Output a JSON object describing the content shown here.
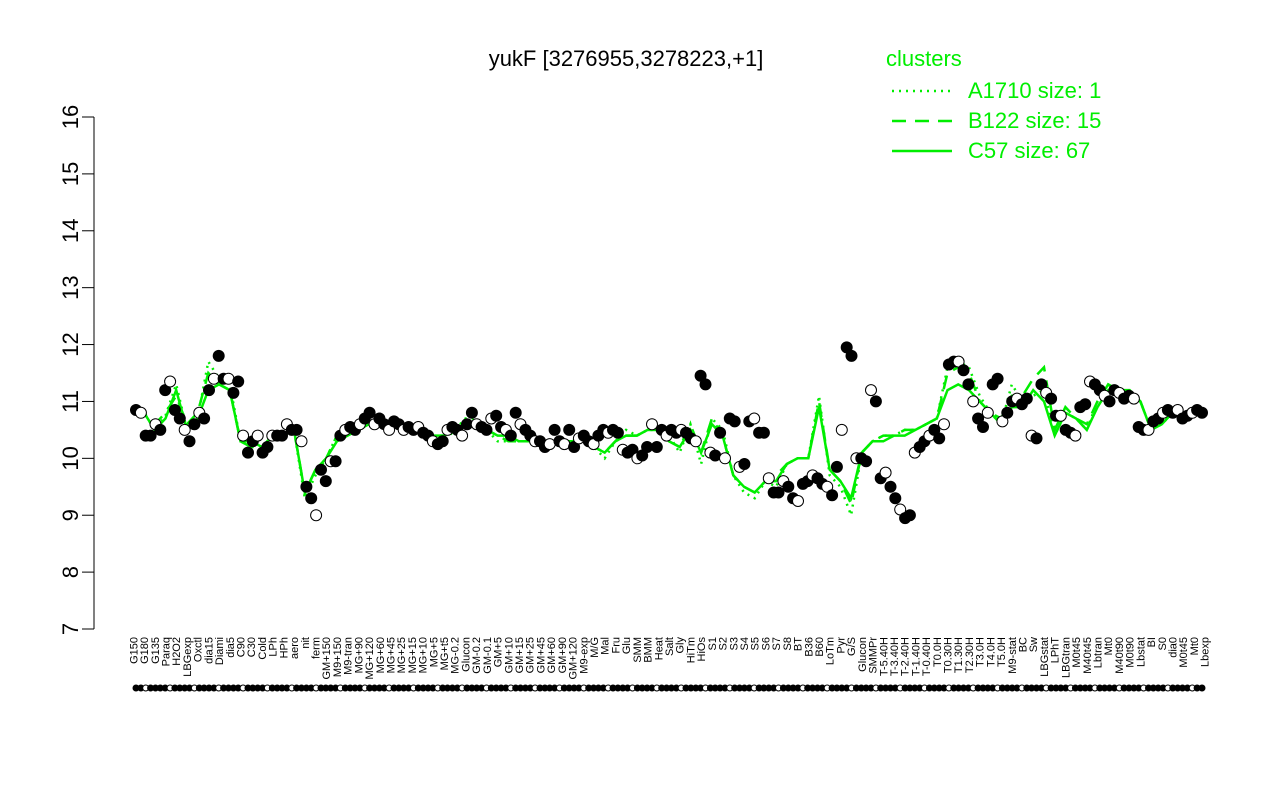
{
  "chart_data": {
    "type": "line",
    "title": "yukF [3276955,3278223,+1]",
    "xlabel": "",
    "ylabel": "",
    "ylim": [
      7,
      16
    ],
    "yticks": [
      7,
      8,
      9,
      10,
      11,
      12,
      13,
      14,
      15,
      16
    ],
    "grid": false,
    "legend": {
      "title": "clusters",
      "placement": "top-right",
      "color": "#00ee00",
      "entries": [
        {
          "label": "A1710 size: 1",
          "style": "dotted"
        },
        {
          "label": "B122 size: 15",
          "style": "dashed"
        },
        {
          "label": "C57 size: 67",
          "style": "solid"
        }
      ]
    },
    "x_tick_labels": [
      "G150",
      "G180",
      "G135",
      "Paraq",
      "H2O2",
      "LBGexp",
      "Oxctl",
      "dia15",
      "Diami",
      "dia5",
      "C90",
      "C30",
      "Cold",
      "LPh",
      "HPh",
      "aero",
      "nit",
      "ferm",
      "GM+150",
      "M9+150",
      "M9-tran",
      "MG+90",
      "MG+120",
      "MG+60",
      "MG+45",
      "MG+25",
      "MG+15",
      "MG+10",
      "MG+5",
      "MG+t5",
      "MG-0.2",
      "Glucon",
      "GM-0.2",
      "GM-0.1",
      "GM+5",
      "GM+10",
      "GM+15",
      "GM+25",
      "GM+45",
      "GM+60",
      "GM+90",
      "GM+120",
      "M9-exp",
      "M/G",
      "Mal",
      "Fru",
      "Glu",
      "SMM",
      "BMM",
      "Heat",
      "Salt",
      "Gly",
      "HiTm",
      "HiOs",
      "S1",
      "S2",
      "S3",
      "S4",
      "S5",
      "S6",
      "S7",
      "S8",
      "BT",
      "B36",
      "B60",
      "LoTm",
      "Pyr",
      "G/S",
      "Glucon",
      "SMMPr",
      "T-5.40H",
      "T-3.40H",
      "T-2.40H",
      "T-1.40H",
      "T-0.40H",
      "T0.0H",
      "T0.30H",
      "T1.30H",
      "T2.30H",
      "T3.0H",
      "T4.0H",
      "T5.0H",
      "M9-stat",
      "BC",
      "Sw",
      "LBGstat",
      "LPhT",
      "LBGtran",
      "M0t45",
      "M40t45",
      "Lbtran",
      "Mt0",
      "M40t90",
      "M0t90",
      "Lbstat",
      "BI",
      "S0",
      "dia0",
      "M0t45",
      "Mt0",
      "Lbexp"
    ],
    "series": [
      {
        "style": "solid",
        "color": "#00ee00",
        "values": [
          10.9,
          10.8,
          10.5,
          10.7,
          11.2,
          10.5,
          10.7,
          11.2,
          11.3,
          11.2,
          10.3,
          10.3,
          10.2,
          10.4,
          10.4,
          10.5,
          9.4,
          9.8,
          10.0,
          10.3,
          10.4,
          10.5,
          10.6,
          10.6,
          10.6,
          10.5,
          10.5,
          10.5,
          10.4,
          10.4,
          10.5,
          10.6,
          10.6,
          10.5,
          10.4,
          10.4,
          10.3,
          10.3,
          10.3,
          10.3,
          10.3,
          10.3,
          10.4,
          10.2,
          10.1,
          10.3,
          10.4,
          10.4,
          10.5,
          10.5,
          10.3,
          10.2,
          10.5,
          10.1,
          10.6,
          10.4,
          9.7,
          9.5,
          9.4,
          9.6,
          9.6,
          9.9,
          10.0,
          10.0,
          10.9,
          9.8,
          9.6,
          9.3,
          10.1,
          10.3,
          10.3,
          10.4,
          10.4,
          10.5,
          10.6,
          10.7,
          11.2,
          11.3,
          11.2,
          11.0,
          10.8,
          10.6,
          10.9,
          10.9,
          11.2,
          11.0,
          10.4,
          10.8,
          10.7,
          10.5,
          10.9,
          11.2,
          11.1,
          11.1,
          11.0,
          10.5,
          10.6,
          10.8,
          10.8,
          10.8,
          10.8
        ]
      },
      {
        "style": "dashed",
        "color": "#00ee00",
        "values": [
          10.8,
          10.8,
          10.6,
          10.8,
          11.1,
          10.6,
          10.8,
          11.5,
          11.3,
          11.2,
          10.3,
          10.2,
          10.2,
          10.4,
          10.4,
          10.5,
          9.4,
          9.8,
          10.0,
          10.4,
          10.5,
          10.6,
          10.6,
          10.6,
          10.6,
          10.5,
          10.5,
          10.5,
          10.4,
          10.4,
          10.5,
          10.6,
          10.6,
          10.5,
          10.4,
          10.3,
          10.3,
          10.3,
          10.3,
          10.3,
          10.3,
          10.3,
          10.4,
          10.2,
          10.1,
          10.3,
          10.4,
          10.4,
          10.5,
          10.5,
          10.3,
          10.2,
          10.6,
          10.1,
          10.7,
          10.4,
          9.7,
          9.5,
          9.4,
          9.6,
          9.7,
          9.9,
          10.0,
          10.0,
          11.0,
          9.8,
          9.6,
          9.2,
          10.1,
          10.3,
          10.4,
          10.4,
          10.5,
          10.5,
          10.6,
          10.7,
          11.5,
          11.6,
          11.5,
          11.0,
          10.8,
          10.7,
          11.1,
          11.1,
          11.4,
          11.6,
          10.5,
          10.9,
          10.7,
          10.6,
          11.0,
          11.3,
          11.2,
          11.2,
          11.0,
          10.5,
          10.7,
          10.8,
          10.8,
          10.8,
          10.8
        ]
      },
      {
        "style": "dotted",
        "color": "#00ee00",
        "values": [
          10.85,
          10.8,
          10.5,
          10.75,
          11.3,
          10.5,
          10.7,
          11.7,
          11.4,
          11.3,
          10.3,
          10.3,
          10.1,
          10.4,
          10.4,
          10.5,
          9.3,
          9.7,
          10.0,
          10.4,
          10.5,
          10.5,
          10.7,
          10.6,
          10.6,
          10.5,
          10.5,
          10.5,
          10.4,
          10.3,
          10.5,
          10.7,
          10.7,
          10.5,
          10.3,
          10.3,
          10.3,
          10.3,
          10.3,
          10.3,
          10.3,
          10.3,
          10.4,
          10.2,
          10.0,
          10.3,
          10.5,
          10.4,
          10.5,
          10.5,
          10.4,
          10.1,
          10.6,
          9.9,
          10.7,
          10.5,
          9.7,
          9.4,
          9.3,
          9.6,
          9.5,
          9.9,
          10.0,
          10.0,
          11.1,
          9.7,
          9.5,
          9.0,
          10.1,
          10.3,
          10.4,
          10.4,
          10.5,
          10.5,
          10.6,
          10.7,
          11.6,
          11.7,
          11.6,
          11.1,
          10.8,
          10.6,
          11.3,
          11.0,
          11.1,
          11.2,
          10.4,
          10.8,
          10.7,
          10.5,
          11.0,
          11.3,
          11.2,
          11.1,
          11.0,
          10.5,
          10.6,
          10.8,
          10.8,
          10.8,
          10.8
        ]
      }
    ],
    "points": [
      {
        "x": 0,
        "y": 10.85
      },
      {
        "x": 1,
        "y": 10.8
      },
      {
        "x": 2,
        "y": 10.4
      },
      {
        "x": 3,
        "y": 10.4
      },
      {
        "x": 4,
        "y": 10.6
      },
      {
        "x": 5,
        "y": 10.5
      },
      {
        "x": 6,
        "y": 11.2
      },
      {
        "x": 7,
        "y": 11.35
      },
      {
        "x": 8,
        "y": 10.85
      },
      {
        "x": 9,
        "y": 10.7
      },
      {
        "x": 10,
        "y": 10.5
      },
      {
        "x": 11,
        "y": 10.3
      },
      {
        "x": 12,
        "y": 10.6
      },
      {
        "x": 13,
        "y": 10.8
      },
      {
        "x": 14,
        "y": 10.7
      },
      {
        "x": 15,
        "y": 11.2
      },
      {
        "x": 16,
        "y": 11.4
      },
      {
        "x": 17,
        "y": 11.8
      },
      {
        "x": 18,
        "y": 11.4
      },
      {
        "x": 19,
        "y": 11.4
      },
      {
        "x": 20,
        "y": 11.15
      },
      {
        "x": 21,
        "y": 11.35
      },
      {
        "x": 22,
        "y": 10.4
      },
      {
        "x": 23,
        "y": 10.1
      },
      {
        "x": 24,
        "y": 10.3
      },
      {
        "x": 25,
        "y": 10.4
      },
      {
        "x": 26,
        "y": 10.1
      },
      {
        "x": 27,
        "y": 10.2
      },
      {
        "x": 28,
        "y": 10.4
      },
      {
        "x": 29,
        "y": 10.4
      },
      {
        "x": 30,
        "y": 10.4
      },
      {
        "x": 31,
        "y": 10.6
      },
      {
        "x": 32,
        "y": 10.5
      },
      {
        "x": 33,
        "y": 10.5
      },
      {
        "x": 34,
        "y": 10.3
      },
      {
        "x": 35,
        "y": 9.5
      },
      {
        "x": 36,
        "y": 9.3
      },
      {
        "x": 37,
        "y": 9.0
      },
      {
        "x": 38,
        "y": 9.8
      },
      {
        "x": 39,
        "y": 9.6
      },
      {
        "x": 40,
        "y": 9.95
      },
      {
        "x": 41,
        "y": 9.95
      },
      {
        "x": 42,
        "y": 10.4
      },
      {
        "x": 43,
        "y": 10.5
      },
      {
        "x": 44,
        "y": 10.55
      },
      {
        "x": 45,
        "y": 10.5
      },
      {
        "x": 46,
        "y": 10.6
      },
      {
        "x": 47,
        "y": 10.7
      },
      {
        "x": 48,
        "y": 10.8
      },
      {
        "x": 49,
        "y": 10.6
      },
      {
        "x": 50,
        "y": 10.7
      },
      {
        "x": 51,
        "y": 10.6
      },
      {
        "x": 52,
        "y": 10.5
      },
      {
        "x": 53,
        "y": 10.65
      },
      {
        "x": 54,
        "y": 10.6
      },
      {
        "x": 55,
        "y": 10.5
      },
      {
        "x": 56,
        "y": 10.55
      },
      {
        "x": 57,
        "y": 10.5
      },
      {
        "x": 58,
        "y": 10.55
      },
      {
        "x": 59,
        "y": 10.45
      },
      {
        "x": 60,
        "y": 10.4
      },
      {
        "x": 61,
        "y": 10.3
      },
      {
        "x": 62,
        "y": 10.25
      },
      {
        "x": 63,
        "y": 10.3
      },
      {
        "x": 64,
        "y": 10.5
      },
      {
        "x": 65,
        "y": 10.55
      },
      {
        "x": 66,
        "y": 10.5
      },
      {
        "x": 67,
        "y": 10.4
      },
      {
        "x": 68,
        "y": 10.6
      },
      {
        "x": 69,
        "y": 10.8
      },
      {
        "x": 70,
        "y": 10.6
      },
      {
        "x": 71,
        "y": 10.55
      },
      {
        "x": 72,
        "y": 10.5
      },
      {
        "x": 73,
        "y": 10.7
      },
      {
        "x": 74,
        "y": 10.75
      },
      {
        "x": 75,
        "y": 10.55
      },
      {
        "x": 76,
        "y": 10.5
      },
      {
        "x": 77,
        "y": 10.4
      },
      {
        "x": 78,
        "y": 10.8
      },
      {
        "x": 79,
        "y": 10.6
      },
      {
        "x": 80,
        "y": 10.5
      },
      {
        "x": 81,
        "y": 10.4
      },
      {
        "x": 82,
        "y": 10.3
      },
      {
        "x": 83,
        "y": 10.3
      },
      {
        "x": 84,
        "y": 10.2
      },
      {
        "x": 85,
        "y": 10.25
      },
      {
        "x": 86,
        "y": 10.5
      },
      {
        "x": 87,
        "y": 10.3
      },
      {
        "x": 88,
        "y": 10.25
      },
      {
        "x": 89,
        "y": 10.5
      },
      {
        "x": 90,
        "y": 10.2
      },
      {
        "x": 91,
        "y": 10.35
      },
      {
        "x": 92,
        "y": 10.4
      },
      {
        "x": 93,
        "y": 10.3
      },
      {
        "x": 94,
        "y": 10.25
      },
      {
        "x": 95,
        "y": 10.4
      },
      {
        "x": 96,
        "y": 10.5
      },
      {
        "x": 97,
        "y": 10.45
      },
      {
        "x": 98,
        "y": 10.5
      },
      {
        "x": 99,
        "y": 10.45
      },
      {
        "x": 100,
        "y": 10.15
      },
      {
        "x": 101,
        "y": 10.1
      },
      {
        "x": 102,
        "y": 10.15
      },
      {
        "x": 103,
        "y": 10.0
      },
      {
        "x": 104,
        "y": 10.05
      },
      {
        "x": 105,
        "y": 10.2
      },
      {
        "x": 106,
        "y": 10.6
      },
      {
        "x": 107,
        "y": 10.2
      },
      {
        "x": 108,
        "y": 10.5
      },
      {
        "x": 109,
        "y": 10.4
      },
      {
        "x": 110,
        "y": 10.5
      },
      {
        "x": 111,
        "y": 10.45
      },
      {
        "x": 112,
        "y": 10.5
      },
      {
        "x": 113,
        "y": 10.45
      },
      {
        "x": 114,
        "y": 10.35
      },
      {
        "x": 115,
        "y": 10.3
      },
      {
        "x": 116,
        "y": 11.45
      },
      {
        "x": 117,
        "y": 11.3
      },
      {
        "x": 118,
        "y": 10.1
      },
      {
        "x": 119,
        "y": 10.05
      },
      {
        "x": 120,
        "y": 10.45
      },
      {
        "x": 121,
        "y": 10.0
      },
      {
        "x": 122,
        "y": 10.7
      },
      {
        "x": 123,
        "y": 10.65
      },
      {
        "x": 124,
        "y": 9.85
      },
      {
        "x": 125,
        "y": 9.9
      },
      {
        "x": 126,
        "y": 10.65
      },
      {
        "x": 127,
        "y": 10.7
      },
      {
        "x": 128,
        "y": 10.45
      },
      {
        "x": 129,
        "y": 10.45
      },
      {
        "x": 130,
        "y": 9.65
      },
      {
        "x": 131,
        "y": 9.4
      },
      {
        "x": 132,
        "y": 9.4
      },
      {
        "x": 133,
        "y": 9.6
      },
      {
        "x": 134,
        "y": 9.5
      },
      {
        "x": 135,
        "y": 9.3
      },
      {
        "x": 136,
        "y": 9.25
      },
      {
        "x": 137,
        "y": 9.55
      },
      {
        "x": 138,
        "y": 9.6
      },
      {
        "x": 139,
        "y": 9.7
      },
      {
        "x": 140,
        "y": 9.65
      },
      {
        "x": 141,
        "y": 9.55
      },
      {
        "x": 142,
        "y": 9.5
      },
      {
        "x": 143,
        "y": 9.35
      },
      {
        "x": 144,
        "y": 9.85
      },
      {
        "x": 145,
        "y": 10.5
      },
      {
        "x": 146,
        "y": 11.95
      },
      {
        "x": 147,
        "y": 11.8
      },
      {
        "x": 148,
        "y": 10.0
      },
      {
        "x": 149,
        "y": 10.0
      },
      {
        "x": 150,
        "y": 9.95
      },
      {
        "x": 151,
        "y": 11.2
      },
      {
        "x": 152,
        "y": 11.0
      },
      {
        "x": 153,
        "y": 9.65
      },
      {
        "x": 154,
        "y": 9.75
      },
      {
        "x": 155,
        "y": 9.5
      },
      {
        "x": 156,
        "y": 9.3
      },
      {
        "x": 157,
        "y": 9.1
      },
      {
        "x": 158,
        "y": 8.95
      },
      {
        "x": 159,
        "y": 9.0
      },
      {
        "x": 160,
        "y": 10.1
      },
      {
        "x": 161,
        "y": 10.2
      },
      {
        "x": 162,
        "y": 10.3
      },
      {
        "x": 163,
        "y": 10.4
      },
      {
        "x": 164,
        "y": 10.5
      },
      {
        "x": 165,
        "y": 10.35
      },
      {
        "x": 166,
        "y": 10.6
      },
      {
        "x": 167,
        "y": 11.65
      },
      {
        "x": 168,
        "y": 11.7
      },
      {
        "x": 169,
        "y": 11.7
      },
      {
        "x": 170,
        "y": 11.55
      },
      {
        "x": 171,
        "y": 11.3
      },
      {
        "x": 172,
        "y": 11.0
      },
      {
        "x": 173,
        "y": 10.7
      },
      {
        "x": 174,
        "y": 10.55
      },
      {
        "x": 175,
        "y": 10.8
      },
      {
        "x": 176,
        "y": 11.3
      },
      {
        "x": 177,
        "y": 11.4
      },
      {
        "x": 178,
        "y": 10.65
      },
      {
        "x": 179,
        "y": 10.8
      },
      {
        "x": 180,
        "y": 11.0
      },
      {
        "x": 181,
        "y": 11.05
      },
      {
        "x": 182,
        "y": 10.95
      },
      {
        "x": 183,
        "y": 11.05
      },
      {
        "x": 184,
        "y": 10.4
      },
      {
        "x": 185,
        "y": 10.35
      },
      {
        "x": 186,
        "y": 11.3
      },
      {
        "x": 187,
        "y": 11.15
      },
      {
        "x": 188,
        "y": 11.05
      },
      {
        "x": 189,
        "y": 10.75
      },
      {
        "x": 190,
        "y": 10.75
      },
      {
        "x": 191,
        "y": 10.5
      },
      {
        "x": 192,
        "y": 10.45
      },
      {
        "x": 193,
        "y": 10.4
      },
      {
        "x": 194,
        "y": 10.9
      },
      {
        "x": 195,
        "y": 10.95
      },
      {
        "x": 196,
        "y": 11.35
      },
      {
        "x": 197,
        "y": 11.3
      },
      {
        "x": 198,
        "y": 11.2
      },
      {
        "x": 199,
        "y": 11.1
      },
      {
        "x": 200,
        "y": 11.0
      },
      {
        "x": 201,
        "y": 11.2
      },
      {
        "x": 202,
        "y": 11.15
      },
      {
        "x": 203,
        "y": 11.05
      },
      {
        "x": 204,
        "y": 11.1
      },
      {
        "x": 205,
        "y": 11.05
      },
      {
        "x": 206,
        "y": 10.55
      },
      {
        "x": 207,
        "y": 10.5
      },
      {
        "x": 208,
        "y": 10.5
      },
      {
        "x": 209,
        "y": 10.65
      },
      {
        "x": 210,
        "y": 10.7
      },
      {
        "x": 211,
        "y": 10.8
      },
      {
        "x": 212,
        "y": 10.85
      },
      {
        "x": 213,
        "y": 10.8
      },
      {
        "x": 214,
        "y": 10.85
      },
      {
        "x": 215,
        "y": 10.7
      },
      {
        "x": 216,
        "y": 10.75
      },
      {
        "x": 217,
        "y": 10.8
      },
      {
        "x": 218,
        "y": 10.85
      },
      {
        "x": 219,
        "y": 10.8
      }
    ]
  }
}
